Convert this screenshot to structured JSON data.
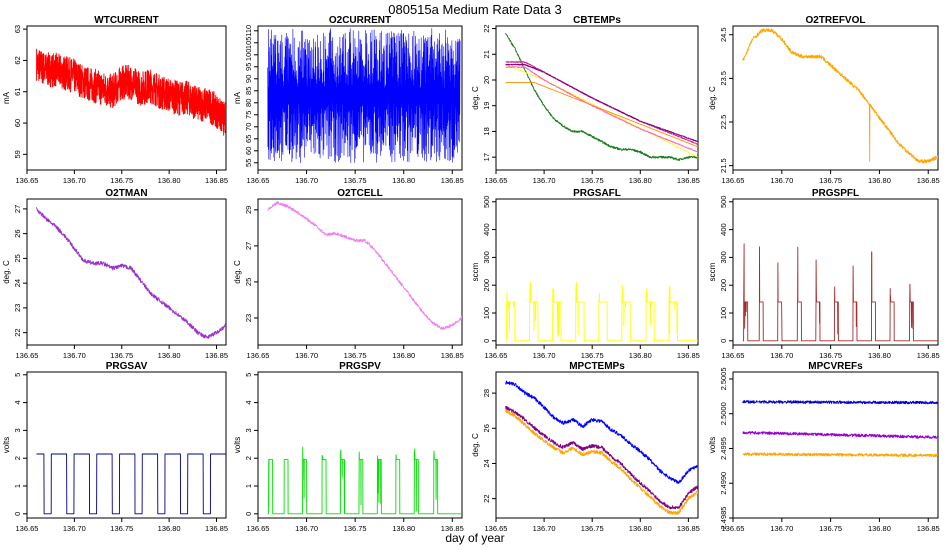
{
  "title": "080515a   Medium Rate Data 3",
  "xlabel": "day of year",
  "chart_data": [
    {
      "id": "wtcurrent",
      "type": "line",
      "title": "WTCURRENT",
      "ylabel": "mA",
      "xlim": [
        136.65,
        136.86
      ],
      "ylim": [
        58.5,
        63.1
      ],
      "xticks": [
        "136.65",
        "136.70",
        "136.75",
        "136.80",
        "136.85"
      ],
      "yticks": [
        59,
        60,
        61,
        62,
        63
      ],
      "series": [
        {
          "color": "#ff0000",
          "noise": 0.55,
          "dense": true,
          "x": [
            136.66,
            136.67,
            136.68,
            136.69,
            136.7,
            136.71,
            136.72,
            136.73,
            136.74,
            136.75,
            136.76,
            136.77,
            136.78,
            136.79,
            136.8,
            136.81,
            136.82,
            136.83,
            136.84,
            136.85,
            136.855,
            136.86
          ],
          "y": [
            61.9,
            61.7,
            61.7,
            61.6,
            61.5,
            61.3,
            61.2,
            61.1,
            61.0,
            61.3,
            61.3,
            61.1,
            61.2,
            61.0,
            60.9,
            60.8,
            60.8,
            60.6,
            60.6,
            60.4,
            60.2,
            60.1
          ]
        }
      ]
    },
    {
      "id": "o2current",
      "type": "line",
      "title": "O2CURRENT",
      "ylabel": "mA",
      "xlim": [
        136.65,
        136.86
      ],
      "ylim": [
        52,
        112
      ],
      "xticks": [
        "136.65",
        "136.70",
        "136.75",
        "136.80",
        "136.85"
      ],
      "yticks": [
        55,
        60,
        65,
        70,
        75,
        80,
        85,
        90,
        95,
        100,
        105,
        110
      ],
      "series": [
        {
          "color": "#0000ff",
          "band": [
            55,
            111
          ],
          "x": [
            136.66,
            136.858
          ],
          "y": [
            84,
            84
          ]
        }
      ]
    },
    {
      "id": "cbtemps",
      "type": "line",
      "title": "CBTEMPs",
      "ylabel": "deg. C",
      "xlim": [
        136.65,
        136.86
      ],
      "ylim": [
        16.5,
        22.1
      ],
      "xticks": [
        "136.65",
        "136.70",
        "136.75",
        "136.80",
        "136.85"
      ],
      "yticks": [
        17,
        18,
        19,
        20,
        21,
        22
      ],
      "series": [
        {
          "color": "#1a7a1a",
          "noise": 0.04,
          "x": [
            136.66,
            136.67,
            136.68,
            136.69,
            136.7,
            136.71,
            136.72,
            136.73,
            136.74,
            136.75,
            136.76,
            136.77,
            136.78,
            136.79,
            136.8,
            136.81,
            136.82,
            136.83,
            136.84,
            136.85,
            136.86
          ],
          "y": [
            21.8,
            21.2,
            20.4,
            19.6,
            19.0,
            18.5,
            18.2,
            18.0,
            18.0,
            17.8,
            17.6,
            17.4,
            17.3,
            17.3,
            17.2,
            17.0,
            17.0,
            17.0,
            16.9,
            17.0,
            17.0
          ]
        },
        {
          "color": "#ffff00",
          "noise": 0.0,
          "x": [
            136.66,
            136.7,
            136.86
          ],
          "y": [
            20.6,
            20.0,
            17.0
          ]
        },
        {
          "color": "#ff8c00",
          "noise": 0.0,
          "x": [
            136.66,
            136.69,
            136.86
          ],
          "y": [
            19.9,
            19.9,
            17.4
          ]
        },
        {
          "color": "#ff69b4",
          "noise": 0.02,
          "x": [
            136.66,
            136.68,
            136.7,
            136.75,
            136.8,
            136.86
          ],
          "y": [
            20.5,
            20.5,
            20.0,
            19.0,
            18.1,
            17.2
          ]
        },
        {
          "color": "#d02090",
          "noise": 0.02,
          "x": [
            136.66,
            136.68,
            136.7,
            136.75,
            136.8,
            136.86
          ],
          "y": [
            20.7,
            20.7,
            20.3,
            19.3,
            18.4,
            17.5
          ]
        },
        {
          "color": "#800080",
          "noise": 0.02,
          "x": [
            136.66,
            136.68,
            136.7,
            136.75,
            136.8,
            136.86
          ],
          "y": [
            20.6,
            20.6,
            20.3,
            19.3,
            18.4,
            17.6
          ]
        }
      ]
    },
    {
      "id": "o2trefvol",
      "type": "line",
      "title": "O2TREFVOL",
      "ylabel": "deg. C",
      "xlim": [
        136.65,
        136.86
      ],
      "ylim": [
        21.4,
        24.7
      ],
      "xticks": [
        "136.65",
        "136.70",
        "136.75",
        "136.80",
        "136.85"
      ],
      "yticks": [
        21.5,
        22.5,
        23.5,
        24.5
      ],
      "series": [
        {
          "color": "#ffa500",
          "noise": 0.04,
          "spike": {
            "x": 136.79,
            "to": 21.6
          },
          "x": [
            136.66,
            136.67,
            136.68,
            136.69,
            136.7,
            136.71,
            136.72,
            136.73,
            136.74,
            136.75,
            136.76,
            136.77,
            136.78,
            136.79,
            136.8,
            136.81,
            136.82,
            136.83,
            136.84,
            136.85,
            136.86
          ],
          "y": [
            23.9,
            24.4,
            24.6,
            24.6,
            24.4,
            24.1,
            24.0,
            24.0,
            24.0,
            23.8,
            23.6,
            23.4,
            23.2,
            22.9,
            22.6,
            22.3,
            22.0,
            21.8,
            21.6,
            21.6,
            21.7
          ]
        }
      ]
    },
    {
      "id": "o2tman",
      "type": "line",
      "title": "O2TMAN",
      "ylabel": "deg. C",
      "xlim": [
        136.65,
        136.86
      ],
      "ylim": [
        21.5,
        27.4
      ],
      "xticks": [
        "136.65",
        "136.70",
        "136.75",
        "136.80",
        "136.85"
      ],
      "yticks": [
        22,
        23,
        24,
        25,
        26,
        27
      ],
      "series": [
        {
          "color": "#9932cc",
          "noise": 0.08,
          "x": [
            136.66,
            136.67,
            136.68,
            136.69,
            136.7,
            136.71,
            136.72,
            136.73,
            136.74,
            136.75,
            136.76,
            136.77,
            136.78,
            136.79,
            136.8,
            136.81,
            136.82,
            136.83,
            136.84,
            136.85,
            136.86
          ],
          "y": [
            27.0,
            26.6,
            26.3,
            25.9,
            25.4,
            24.9,
            24.8,
            24.8,
            24.6,
            24.7,
            24.6,
            24.1,
            23.6,
            23.3,
            23.0,
            22.7,
            22.4,
            22.0,
            21.8,
            22.0,
            22.3
          ]
        }
      ]
    },
    {
      "id": "o2tcell",
      "type": "line",
      "title": "O2TCELL",
      "ylabel": "deg. C",
      "xlim": [
        136.65,
        136.86
      ],
      "ylim": [
        21.5,
        29.6
      ],
      "xticks": [
        "136.65",
        "136.70",
        "136.75",
        "136.80",
        "136.85"
      ],
      "yticks": [
        23,
        25,
        27,
        29
      ],
      "series": [
        {
          "color": "#ee82ee",
          "noise": 0.08,
          "x": [
            136.66,
            136.67,
            136.68,
            136.69,
            136.7,
            136.71,
            136.72,
            136.73,
            136.74,
            136.75,
            136.76,
            136.77,
            136.78,
            136.79,
            136.8,
            136.81,
            136.82,
            136.83,
            136.84,
            136.85,
            136.86
          ],
          "y": [
            29.0,
            29.4,
            29.2,
            28.9,
            28.5,
            28.1,
            27.6,
            27.7,
            27.5,
            27.3,
            27.3,
            26.8,
            26.1,
            25.4,
            24.7,
            24.0,
            23.3,
            22.7,
            22.4,
            22.6,
            23.0
          ]
        }
      ]
    },
    {
      "id": "prgsafl",
      "type": "line",
      "title": "PRGSAFL",
      "ylabel": "sccm",
      "xlim": [
        136.65,
        136.86
      ],
      "ylim": [
        -15,
        510
      ],
      "xticks": [
        "136.65",
        "136.70",
        "136.75",
        "136.80",
        "136.85"
      ],
      "yticks": [
        0,
        100,
        200,
        300,
        400,
        500
      ],
      "series": [
        {
          "color": "#ffff00",
          "pulse": {
            "high": 140,
            "low": 0,
            "starts": [
              136.661,
              136.685,
              136.709,
              136.733,
              136.757,
              136.781,
              136.806,
              136.83
            ],
            "width": 0.0085,
            "spike": 215
          },
          "x": [
            136.66,
            136.86
          ],
          "y": [
            0,
            0
          ]
        }
      ]
    },
    {
      "id": "prgspfl",
      "type": "line",
      "title": "PRGSPFL",
      "ylabel": "sccm",
      "xlim": [
        136.65,
        136.86
      ],
      "ylim": [
        -15,
        510
      ],
      "xticks": [
        "136.65",
        "136.70",
        "136.75",
        "136.80",
        "136.85"
      ],
      "yticks": [
        0,
        100,
        200,
        300,
        400,
        500
      ],
      "series": [
        {
          "color": "#a52a2a",
          "pulse": {
            "high": 140,
            "low": 0,
            "starts": [
              136.661,
              136.677,
              136.696,
              136.716,
              136.735,
              136.754,
              136.773,
              136.792,
              136.811,
              136.831
            ],
            "width": 0.004,
            "spike": 360
          },
          "x": [
            136.66,
            136.86
          ],
          "y": [
            0,
            0
          ]
        }
      ]
    },
    {
      "id": "prgsav",
      "type": "line",
      "title": "PRGSAV",
      "ylabel": "volts",
      "xlim": [
        136.65,
        136.86
      ],
      "ylim": [
        -0.15,
        5.1
      ],
      "xticks": [
        "136.65",
        "136.70",
        "136.75",
        "136.80",
        "136.85"
      ],
      "yticks": [
        0,
        1,
        2,
        3,
        4,
        5
      ],
      "series": [
        {
          "color": "#00008b",
          "pulse": {
            "high": 2.15,
            "low": 0,
            "invert": true,
            "starts": [
              136.668,
              136.692,
              136.716,
              136.74,
              136.764,
              136.788,
              136.812,
              136.836
            ],
            "width": 0.0075,
            "spike": 2.2
          },
          "x": [
            136.66,
            136.86
          ],
          "y": [
            2.15,
            2.15
          ]
        }
      ]
    },
    {
      "id": "prgspv",
      "type": "line",
      "title": "PRGSPV",
      "ylabel": "volts",
      "xlim": [
        136.65,
        136.86
      ],
      "ylim": [
        -0.15,
        5.1
      ],
      "xticks": [
        "136.65",
        "136.70",
        "136.75",
        "136.80",
        "136.85"
      ],
      "yticks": [
        0,
        1,
        2,
        3,
        4,
        5
      ],
      "series": [
        {
          "color": "#00e000",
          "pulse": {
            "high": 1.95,
            "low": 0,
            "starts": [
              136.661,
              136.677,
              136.696,
              136.716,
              136.735,
              136.754,
              136.773,
              136.792,
              136.811,
              136.831
            ],
            "width": 0.004,
            "spike": 2.4
          },
          "x": [
            136.66,
            136.86
          ],
          "y": [
            0,
            0
          ]
        }
      ]
    },
    {
      "id": "mpctemps",
      "type": "line",
      "title": "MPCTEMPs",
      "ylabel": "deg. C",
      "xlim": [
        136.65,
        136.86
      ],
      "ylim": [
        20.9,
        29.2
      ],
      "xticks": [
        "136.65",
        "136.70",
        "136.75",
        "136.80",
        "136.85"
      ],
      "yticks": [
        22,
        24,
        26,
        28
      ],
      "series": [
        {
          "color": "#0000ff",
          "noise": 0.1,
          "x": [
            136.66,
            136.67,
            136.68,
            136.69,
            136.7,
            136.71,
            136.72,
            136.73,
            136.74,
            136.75,
            136.76,
            136.77,
            136.78,
            136.79,
            136.8,
            136.81,
            136.82,
            136.83,
            136.84,
            136.85,
            136.86
          ],
          "y": [
            28.6,
            28.5,
            28.0,
            27.7,
            27.2,
            26.6,
            26.3,
            26.5,
            26.1,
            26.5,
            26.4,
            25.9,
            25.6,
            25.1,
            24.7,
            24.2,
            23.6,
            23.2,
            22.9,
            23.6,
            23.9
          ]
        },
        {
          "color": "#800080",
          "noise": 0.1,
          "x": [
            136.66,
            136.67,
            136.68,
            136.69,
            136.7,
            136.71,
            136.72,
            136.73,
            136.74,
            136.75,
            136.76,
            136.77,
            136.78,
            136.79,
            136.8,
            136.81,
            136.82,
            136.83,
            136.84,
            136.85,
            136.86
          ],
          "y": [
            27.2,
            26.9,
            26.5,
            26.0,
            25.6,
            25.2,
            24.9,
            25.2,
            24.8,
            25.0,
            24.9,
            24.4,
            24.0,
            23.4,
            22.9,
            22.4,
            21.9,
            21.5,
            21.5,
            22.3,
            22.7
          ]
        },
        {
          "color": "#ffa500",
          "noise": 0.1,
          "x": [
            136.66,
            136.67,
            136.68,
            136.69,
            136.7,
            136.71,
            136.72,
            136.73,
            136.74,
            136.75,
            136.76,
            136.77,
            136.78,
            136.79,
            136.8,
            136.81,
            136.82,
            136.83,
            136.84,
            136.85,
            136.86
          ],
          "y": [
            27.0,
            26.7,
            26.2,
            25.7,
            25.3,
            24.9,
            24.6,
            24.9,
            24.5,
            24.7,
            24.6,
            24.1,
            23.7,
            23.1,
            22.6,
            22.1,
            21.6,
            21.2,
            21.2,
            22.0,
            22.4
          ]
        }
      ]
    },
    {
      "id": "mpcvrefs",
      "type": "line",
      "title": "MPCVREFs",
      "ylabel": "volts",
      "xlim": [
        136.65,
        136.86
      ],
      "ylim": [
        2.4985,
        2.5006
      ],
      "xticks": [
        "136.65",
        "136.70",
        "136.75",
        "136.80",
        "136.85"
      ],
      "yticks": [
        "2.4985",
        "2.4990",
        "2.4995",
        "2.5000",
        "2.5005"
      ],
      "ytick_vals": [
        2.4985,
        2.499,
        2.4995,
        2.5,
        2.5005
      ],
      "series": [
        {
          "color": "#0000cd",
          "noise": 2e-05,
          "x": [
            136.66,
            136.86
          ],
          "y": [
            2.50017,
            2.50016
          ]
        },
        {
          "color": "#9400d3",
          "noise": 2e-05,
          "x": [
            136.66,
            136.86
          ],
          "y": [
            2.49973,
            2.49966
          ]
        },
        {
          "color": "#ffa500",
          "noise": 2e-05,
          "x": [
            136.66,
            136.86
          ],
          "y": [
            2.49942,
            2.4994
          ]
        }
      ]
    }
  ]
}
